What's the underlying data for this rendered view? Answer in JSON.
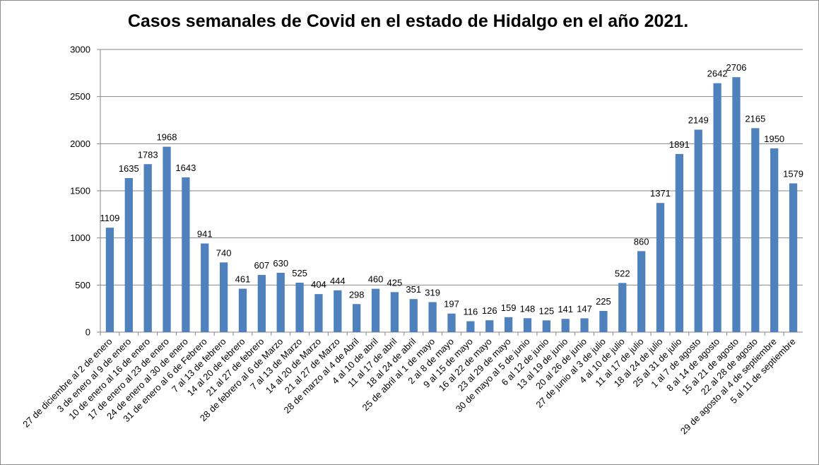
{
  "chart_data": {
    "type": "bar",
    "title": "Casos semanales de Covid en el estado de Hidalgo en el año 2021.",
    "xlabel": "",
    "ylabel": "",
    "ylim": [
      0,
      3000
    ],
    "yticks": [
      0,
      500,
      1000,
      1500,
      2000,
      2500,
      3000
    ],
    "grid": true,
    "legend": "none",
    "bar_color": "#4f81bd",
    "categories": [
      "27 de diciembre al 2 de enero",
      "3 de enero al 9 de enero",
      "10 de enero al 16 de enero",
      "17 de enero al 23 de enero",
      "24 de enero al 30 de enero",
      "31 de enero al 6 de Febrero",
      "7 al 13 de febrero",
      "14 al 20 de febrero",
      "21 al 27 de febrero",
      "28 de febrero al  6 de Marzo",
      "7 al 13 de Marzo",
      "14 al 20 de Marzo",
      "21 al 27 de Marzo",
      "28 de marzo al 4 de Abril",
      "4 al 10 de abril",
      "11 al 17 de abril",
      "18 al 24 de abril",
      "25 de abril al 1 de mayo",
      "2 al 8 de mayo",
      "9 al 15 de mayo",
      "16 al 22 de mayo",
      "23 al 29 de mayo",
      "30 de mayo al 5 de junio",
      "6 al 12 de junio",
      "13 al 19 de junio",
      "20 al 26 de junio",
      "27 de junio al 3 de julio",
      "4 al 10 de julio",
      "11 al 17 de julio",
      "18 al 24 de julio",
      "25 al 31 de julio",
      "1 al 7 de agosto",
      "8 al 14 de agosto",
      "15 al 21 de agosto",
      "22 al 28 de agosto",
      "29 de agosto al 4 de septiembre",
      "5 al 11 de septiembre"
    ],
    "values": [
      1109,
      1635,
      1783,
      1968,
      1643,
      941,
      740,
      461,
      607,
      630,
      525,
      404,
      444,
      298,
      460,
      425,
      351,
      319,
      197,
      116,
      126,
      159,
      148,
      125,
      141,
      147,
      225,
      522,
      860,
      1371,
      1891,
      2149,
      2642,
      2706,
      2165,
      1950,
      1579
    ]
  }
}
